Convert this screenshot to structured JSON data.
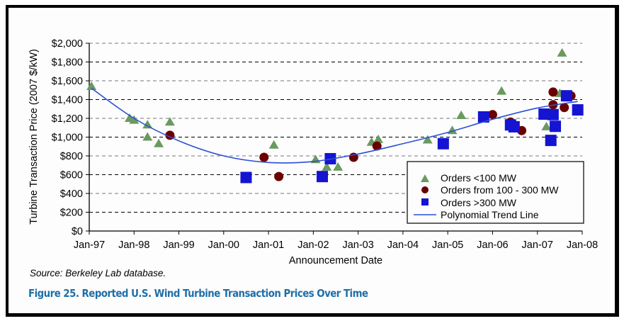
{
  "chart_data": {
    "type": "scatter",
    "title": "",
    "xlabel": "Announcement Date",
    "ylabel": "Turbine Transaction Price (2007 $/kW)",
    "xlim": [
      1997,
      2008
    ],
    "ylim": [
      0,
      2000
    ],
    "grid": true,
    "legend_position": "bottom-right",
    "x_ticks": [
      {
        "value": 1997,
        "label": "Jan-97"
      },
      {
        "value": 1998,
        "label": "Jan-98"
      },
      {
        "value": 1999,
        "label": "Jan-99"
      },
      {
        "value": 2000,
        "label": "Jan-00"
      },
      {
        "value": 2001,
        "label": "Jan-01"
      },
      {
        "value": 2002,
        "label": "Jan-02"
      },
      {
        "value": 2003,
        "label": "Jan-03"
      },
      {
        "value": 2004,
        "label": "Jan-04"
      },
      {
        "value": 2005,
        "label": "Jan-05"
      },
      {
        "value": 2006,
        "label": "Jan-06"
      },
      {
        "value": 2007,
        "label": "Jan-07"
      },
      {
        "value": 2008,
        "label": "Jan-08"
      }
    ],
    "y_ticks": [
      {
        "value": 0,
        "label": "$0"
      },
      {
        "value": 200,
        "label": "$200"
      },
      {
        "value": 400,
        "label": "$400"
      },
      {
        "value": 600,
        "label": "$600"
      },
      {
        "value": 800,
        "label": "$800"
      },
      {
        "value": 1000,
        "label": "$1,000"
      },
      {
        "value": 1200,
        "label": "$1,200"
      },
      {
        "value": 1400,
        "label": "$1,400"
      },
      {
        "value": 1600,
        "label": "$1,600"
      },
      {
        "value": 1800,
        "label": "$1,800"
      },
      {
        "value": 2000,
        "label": "$2,000"
      }
    ],
    "series": [
      {
        "name": "Orders <100 MW",
        "marker": "triangle",
        "color": "#6a9a5e",
        "points": [
          [
            1997.05,
            1540
          ],
          [
            1997.9,
            1200
          ],
          [
            1998.0,
            1180
          ],
          [
            1998.3,
            1130
          ],
          [
            1998.3,
            1000
          ],
          [
            1998.55,
            930
          ],
          [
            1998.8,
            1160
          ],
          [
            2001.12,
            915
          ],
          [
            2002.05,
            760
          ],
          [
            2002.3,
            680
          ],
          [
            2002.55,
            680
          ],
          [
            2003.3,
            945
          ],
          [
            2003.45,
            975
          ],
          [
            2004.55,
            970
          ],
          [
            2005.1,
            1070
          ],
          [
            2005.3,
            1230
          ],
          [
            2006.2,
            1490
          ],
          [
            2007.2,
            1110
          ],
          [
            2007.5,
            1465
          ],
          [
            2007.55,
            1895
          ]
        ]
      },
      {
        "name": "Orders from 100 - 300 MW",
        "marker": "circle",
        "color": "#6b0000",
        "points": [
          [
            1998.8,
            1020
          ],
          [
            2000.9,
            785
          ],
          [
            2001.23,
            580
          ],
          [
            2002.9,
            785
          ],
          [
            2003.42,
            905
          ],
          [
            2006.0,
            1240
          ],
          [
            2006.4,
            1160
          ],
          [
            2006.65,
            1070
          ],
          [
            2007.35,
            1480
          ],
          [
            2007.35,
            1345
          ],
          [
            2007.6,
            1315
          ],
          [
            2007.75,
            1440
          ]
        ]
      },
      {
        "name": "Orders >300 MW",
        "marker": "square",
        "color": "#1414d2",
        "points": [
          [
            2000.5,
            570
          ],
          [
            2002.2,
            580
          ],
          [
            2002.38,
            770
          ],
          [
            2004.9,
            930
          ],
          [
            2005.8,
            1215
          ],
          [
            2006.4,
            1130
          ],
          [
            2006.48,
            1110
          ],
          [
            2007.15,
            1245
          ],
          [
            2007.35,
            1240
          ],
          [
            2007.3,
            965
          ],
          [
            2007.4,
            1115
          ],
          [
            2007.65,
            1440
          ],
          [
            2007.9,
            1290
          ]
        ]
      },
      {
        "name": "Polynomial Trend Line",
        "marker": "line",
        "color": "#2a4fd6",
        "points": [
          [
            1997.05,
            1520
          ],
          [
            1998,
            1200
          ],
          [
            1999,
            960
          ],
          [
            2000,
            800
          ],
          [
            2001,
            730
          ],
          [
            2002,
            740
          ],
          [
            2003,
            820
          ],
          [
            2004,
            930
          ],
          [
            2005,
            1050
          ],
          [
            2006,
            1190
          ],
          [
            2007,
            1310
          ],
          [
            2007.9,
            1380
          ]
        ]
      }
    ]
  },
  "source_note": "Source: Berkeley Lab database.",
  "figure_caption": "Figure 25. Reported U.S. Wind Turbine Transaction Prices Over Time"
}
